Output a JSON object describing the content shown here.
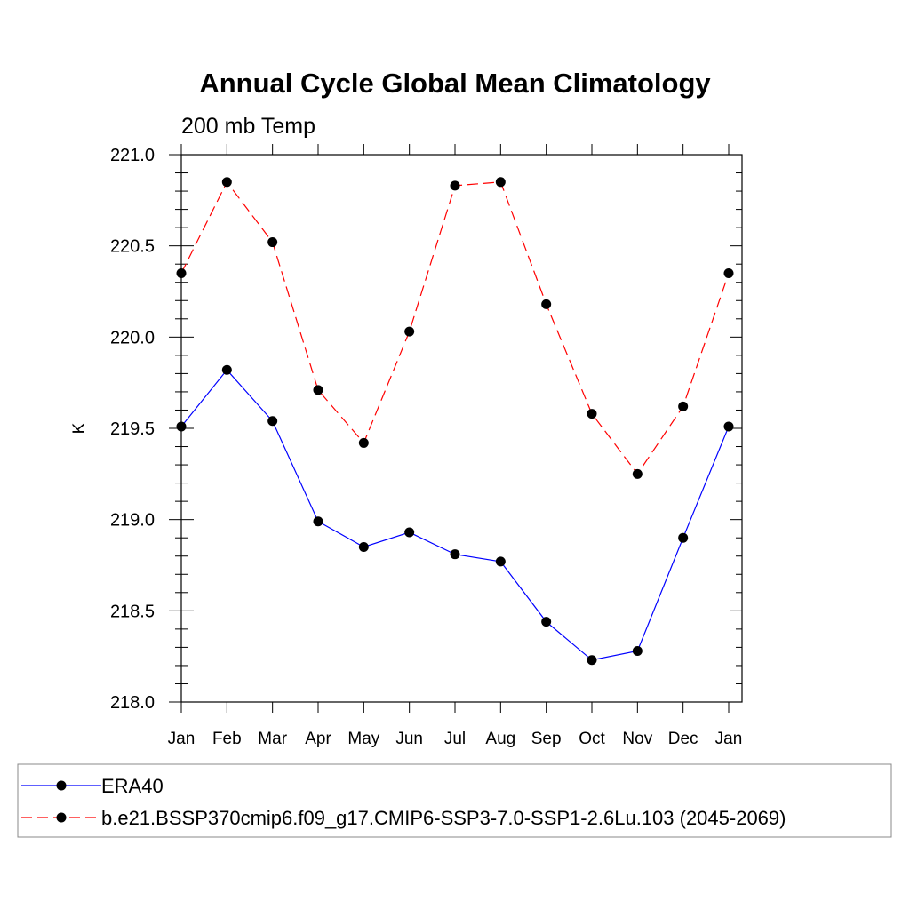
{
  "chart_data": {
    "type": "line",
    "title": "Annual Cycle Global Mean Climatology",
    "subtitle": "200 mb Temp",
    "ylabel": "K",
    "xlabel": "",
    "categories": [
      "Jan",
      "Feb",
      "Mar",
      "Apr",
      "May",
      "Jun",
      "Jul",
      "Aug",
      "Sep",
      "Oct",
      "Nov",
      "Dec",
      "Jan"
    ],
    "ylim": [
      218.0,
      221.0
    ],
    "yticks": [
      "218.0",
      "218.5",
      "219.0",
      "219.5",
      "220.0",
      "220.5",
      "221.0"
    ],
    "grid": false,
    "legend_position": "bottom",
    "series": [
      {
        "name": "ERA40",
        "color": "#0000ff",
        "dash": "solid",
        "marker": "filled-circle",
        "values": [
          219.51,
          219.82,
          219.54,
          218.99,
          218.85,
          218.93,
          218.81,
          218.77,
          218.44,
          218.23,
          218.28,
          218.9,
          219.51
        ]
      },
      {
        "name": "b.e21.BSSP370cmip6.f09_g17.CMIP6-SSP3-7.0-SSP1-2.6Lu.103 (2045-2069)",
        "color": "#ff0000",
        "dash": "dashed",
        "marker": "filled-circle",
        "values": [
          220.35,
          220.85,
          220.52,
          219.71,
          219.42,
          220.03,
          220.83,
          220.85,
          220.18,
          219.58,
          219.25,
          219.62,
          220.35
        ]
      }
    ]
  }
}
